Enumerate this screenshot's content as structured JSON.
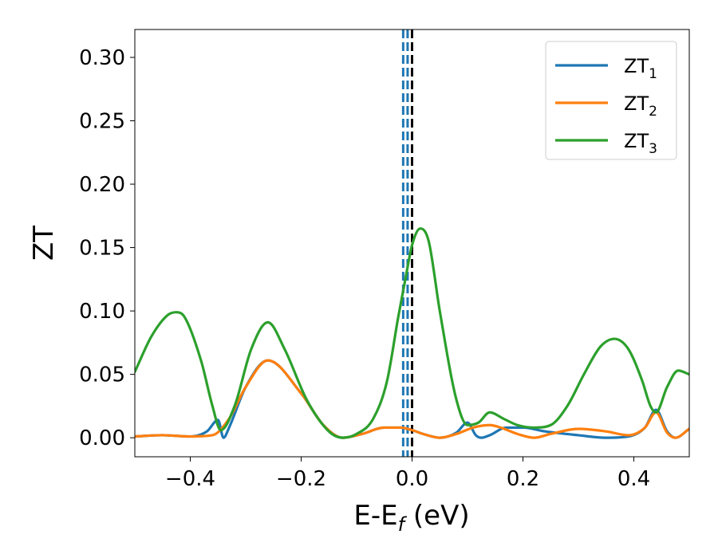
{
  "chart_data": {
    "type": "line",
    "xlabel": "E-E",
    "xlabel_sub": "f",
    "xlabel_unit": " (eV)",
    "ylabel": "ZT",
    "xlim": [
      -0.5,
      0.5
    ],
    "ylim": [
      -0.015,
      0.322
    ],
    "xticks": [
      -0.4,
      -0.2,
      0.0,
      0.2,
      0.4
    ],
    "xtick_labels": [
      "−0.4",
      "−0.2",
      "0.0",
      "0.2",
      "0.4"
    ],
    "yticks": [
      0.0,
      0.05,
      0.1,
      0.15,
      0.2,
      0.25,
      0.3
    ],
    "ytick_labels": [
      "0.00",
      "0.05",
      "0.10",
      "0.15",
      "0.20",
      "0.25",
      "0.30"
    ],
    "grid": false,
    "legend_position": "top-right",
    "vlines": [
      {
        "x": -0.016,
        "color": "#1f77b4",
        "style": "dashed"
      },
      {
        "x": -0.008,
        "color": "#1f77b4",
        "style": "dashed"
      },
      {
        "x": 0.0,
        "color": "#000000",
        "style": "dashed"
      }
    ],
    "series": [
      {
        "name": "ZT",
        "sub": "1",
        "color": "#1f77b4",
        "x": [
          -0.5,
          -0.45,
          -0.4,
          -0.37,
          -0.35,
          -0.34,
          -0.33,
          -0.3,
          -0.26,
          -0.2,
          -0.16,
          -0.125,
          -0.09,
          -0.05,
          -0.02,
          0.0,
          0.02,
          0.05,
          0.08,
          0.1,
          0.115,
          0.125,
          0.14,
          0.17,
          0.2,
          0.24,
          0.3,
          0.35,
          0.39,
          0.42,
          0.44,
          0.46,
          0.475,
          0.5
        ],
        "y": [
          0.001,
          0.002,
          0.001,
          0.005,
          0.014,
          0.0,
          0.008,
          0.04,
          0.061,
          0.035,
          0.01,
          0.0,
          0.003,
          0.008,
          0.008,
          0.006,
          0.003,
          0.0,
          0.004,
          0.012,
          0.002,
          0.0,
          0.002,
          0.008,
          0.008,
          0.005,
          0.002,
          0.0,
          0.001,
          0.008,
          0.022,
          0.005,
          0.0,
          0.007
        ]
      },
      {
        "name": "ZT",
        "sub": "2",
        "color": "#ff7f0e",
        "x": [
          -0.5,
          -0.45,
          -0.4,
          -0.36,
          -0.33,
          -0.3,
          -0.26,
          -0.2,
          -0.16,
          -0.125,
          -0.09,
          -0.05,
          -0.02,
          0.0,
          0.02,
          0.05,
          0.08,
          0.11,
          0.14,
          0.16,
          0.19,
          0.22,
          0.25,
          0.3,
          0.35,
          0.39,
          0.42,
          0.44,
          0.46,
          0.475,
          0.5
        ],
        "y": [
          0.001,
          0.002,
          0.001,
          0.002,
          0.015,
          0.04,
          0.061,
          0.035,
          0.01,
          0.0,
          0.003,
          0.008,
          0.008,
          0.006,
          0.003,
          0.0,
          0.003,
          0.008,
          0.01,
          0.008,
          0.003,
          0.0,
          0.003,
          0.007,
          0.005,
          0.002,
          0.008,
          0.02,
          0.004,
          0.0,
          0.007
        ]
      },
      {
        "name": "ZT",
        "sub": "3",
        "color": "#2ca02c",
        "x": [
          -0.5,
          -0.47,
          -0.44,
          -0.425,
          -0.41,
          -0.38,
          -0.36,
          -0.345,
          -0.32,
          -0.29,
          -0.26,
          -0.23,
          -0.19,
          -0.15,
          -0.125,
          -0.1,
          -0.07,
          -0.045,
          -0.025,
          -0.01,
          0.0,
          0.015,
          0.03,
          0.05,
          0.08,
          0.1,
          0.12,
          0.14,
          0.165,
          0.19,
          0.22,
          0.25,
          0.28,
          0.31,
          0.34,
          0.365,
          0.39,
          0.415,
          0.43,
          0.44,
          0.46,
          0.48,
          0.5
        ],
        "y": [
          0.052,
          0.08,
          0.097,
          0.099,
          0.095,
          0.06,
          0.025,
          0.006,
          0.025,
          0.07,
          0.091,
          0.07,
          0.03,
          0.005,
          0.0,
          0.003,
          0.015,
          0.045,
          0.095,
          0.13,
          0.152,
          0.165,
          0.155,
          0.1,
          0.03,
          0.01,
          0.012,
          0.02,
          0.015,
          0.01,
          0.008,
          0.01,
          0.025,
          0.05,
          0.072,
          0.078,
          0.07,
          0.045,
          0.025,
          0.02,
          0.04,
          0.053,
          0.05
        ]
      }
    ]
  }
}
